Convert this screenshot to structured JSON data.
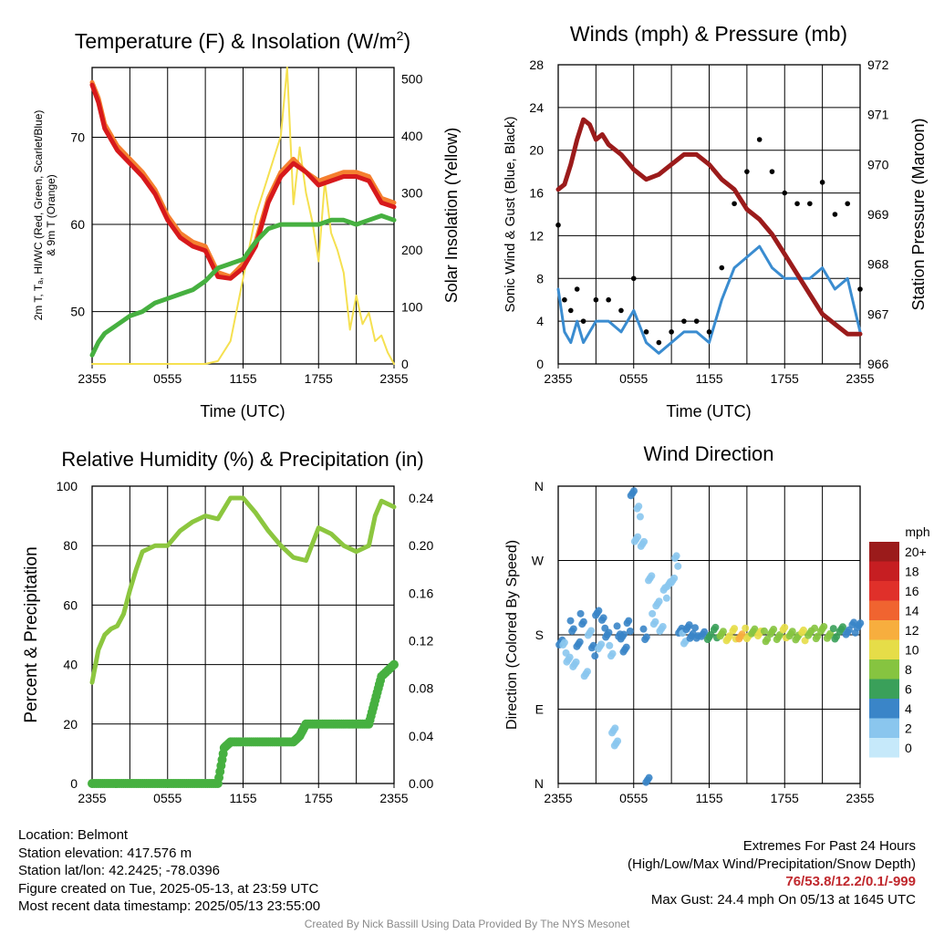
{
  "colors": {
    "t2m": "#d7191c",
    "t9m": "#f57f2f",
    "wc": "#c0282d",
    "td": "#46b040",
    "solar": "#f5e050",
    "wind": "#3a8cd0",
    "gust": "#000000",
    "pressure": "#9b1b1b",
    "rh": "#8cc63f",
    "precip": "#46b040"
  },
  "footer": {
    "location": "Location: Belmont",
    "elevation": "Station elevation: 417.576 m",
    "latlon": "Station lat/lon: 42.2425; -78.0396",
    "created": "Figure created on Tue, 2025-05-13, at 23:59 UTC",
    "recent": "Most recent data timestamp: 2025/05/13 23:55:00",
    "extremes_title": "Extremes For Past 24 Hours",
    "extremes_sub": "(High/Low/Max Wind/Precipitation/Snow Depth)",
    "extremes_values": "76/53.8/12.2/0.1/-999",
    "max_gust": "Max Gust: 24.4 mph On 05/13 at 1645 UTC",
    "credit": "Created By Nick Bassill Using Data Provided By The NYS Mesonet"
  },
  "chart_data": [
    {
      "type": "line",
      "title_main": "Temperature (F) & Insolation (W/m",
      "title_sup": "2",
      "title_end": ")",
      "xlabel": "Time (UTC)",
      "ylabel_lines": [
        "2m T, Tₐ, HI/WC (Red, Green, Scarlet/Blue)",
        "& 9m T (Orange)"
      ],
      "ylabel2": "Solar Insolation (Yellow)",
      "x_ticks": [
        "2355",
        "0555",
        "1155",
        "1755",
        "2355"
      ],
      "ylim": [
        44,
        78
      ],
      "y_ticks": [
        50,
        60,
        70
      ],
      "y2lim": [
        0,
        520
      ],
      "y2_ticks": [
        0,
        100,
        200,
        300,
        400,
        500
      ],
      "series": [
        {
          "key": "t9m",
          "axis": "left",
          "x": [
            0,
            0.5,
            1,
            2,
            3,
            4,
            5,
            6,
            7,
            8,
            9,
            10,
            11,
            12,
            13,
            14,
            15,
            16,
            17,
            18,
            19,
            20,
            21,
            22,
            23,
            24
          ],
          "values": [
            76.3,
            74.5,
            71.5,
            69,
            67.5,
            66,
            64,
            61,
            59,
            58,
            57.5,
            54.5,
            54,
            55.5,
            58,
            63,
            66,
            67.5,
            66,
            65,
            65.5,
            66,
            66,
            65.5,
            63,
            62.5
          ]
        },
        {
          "key": "t2m",
          "axis": "left",
          "x": [
            0,
            0.5,
            1,
            2,
            3,
            4,
            5,
            6,
            7,
            8,
            9,
            10,
            11,
            12,
            13,
            14,
            15,
            16,
            17,
            18,
            19,
            20,
            21,
            22,
            23,
            24
          ],
          "values": [
            76,
            74,
            71,
            68.5,
            67,
            65.5,
            63.5,
            60.5,
            58.5,
            57.5,
            57,
            54,
            53.8,
            55,
            57.5,
            62.5,
            65.5,
            67,
            66,
            64.5,
            65,
            65.5,
            65.5,
            65,
            62.5,
            62
          ]
        },
        {
          "key": "td",
          "axis": "left",
          "x": [
            0,
            0.5,
            1,
            2,
            3,
            4,
            5,
            6,
            7,
            8,
            9,
            10,
            11,
            12,
            13,
            14,
            15,
            16,
            17,
            18,
            19,
            20,
            21,
            22,
            23,
            24
          ],
          "values": [
            45,
            46.5,
            47.5,
            48.5,
            49.5,
            50,
            51,
            51.5,
            52,
            52.5,
            53.5,
            55,
            55.5,
            56,
            58,
            59.5,
            60,
            60,
            60,
            60,
            60.5,
            60.5,
            60,
            60.5,
            61,
            60.5
          ]
        },
        {
          "key": "solar",
          "axis": "right",
          "x": [
            0,
            9,
            10,
            11,
            12,
            13,
            14,
            15,
            15.5,
            16,
            16.5,
            17,
            17.5,
            18,
            18.5,
            19,
            19.5,
            20,
            20.5,
            21,
            21.5,
            22,
            22.5,
            23,
            23.5,
            24
          ],
          "values": [
            0,
            0,
            5,
            40,
            150,
            260,
            330,
            400,
            520,
            280,
            380,
            300,
            250,
            180,
            320,
            230,
            200,
            160,
            60,
            120,
            70,
            90,
            40,
            50,
            20,
            0
          ]
        }
      ]
    },
    {
      "type": "line",
      "title": "Winds (mph) & Pressure (mb)",
      "xlabel": "Time (UTC)",
      "ylabel": "Sonic Wind & Gust (Blue, Black)",
      "ylabel2": "Station Pressure (Maroon)",
      "x_ticks": [
        "2355",
        "0555",
        "1155",
        "1755",
        "2355"
      ],
      "ylim": [
        0,
        28
      ],
      "y_ticks": [
        0,
        4,
        8,
        12,
        16,
        20,
        24,
        28
      ],
      "y2lim": [
        966,
        972
      ],
      "y2_ticks": [
        966,
        967,
        968,
        969,
        970,
        971,
        972
      ],
      "series": [
        {
          "key": "pressure",
          "axis": "right",
          "x": [
            0,
            0.5,
            1,
            1.5,
            2,
            2.5,
            3,
            3.5,
            4,
            5,
            6,
            7,
            8,
            9,
            10,
            11,
            12,
            13,
            14,
            15,
            16,
            17,
            18,
            19,
            20,
            21,
            22,
            23,
            24
          ],
          "values": [
            969.5,
            969.6,
            970,
            970.5,
            970.9,
            970.8,
            970.5,
            970.6,
            970.4,
            970.2,
            969.9,
            969.7,
            969.8,
            970,
            970.2,
            970.2,
            970,
            969.7,
            969.5,
            969.1,
            968.9,
            968.6,
            968.2,
            967.8,
            967.4,
            967,
            966.8,
            966.6,
            966.6
          ]
        },
        {
          "key": "wind",
          "axis": "left",
          "x": [
            0,
            0.5,
            1,
            1.5,
            2,
            3,
            4,
            5,
            6,
            7,
            8,
            9,
            10,
            11,
            12,
            13,
            14,
            15,
            16,
            17,
            18,
            19,
            20,
            21,
            22,
            23,
            24
          ],
          "values": [
            7,
            3,
            2,
            4,
            2,
            4,
            4,
            3,
            5,
            2,
            1,
            2,
            3,
            3,
            2,
            6,
            9,
            10,
            11,
            9,
            8,
            8,
            8,
            9,
            7,
            8,
            3
          ]
        },
        {
          "key": "gust",
          "axis": "left",
          "mode": "markers",
          "x": [
            0,
            0.5,
            1,
            1.5,
            2,
            3,
            4,
            5,
            6,
            7,
            8,
            9,
            10,
            11,
            12,
            13,
            14,
            15,
            16,
            17,
            18,
            19,
            20,
            21,
            22,
            23,
            24
          ],
          "values": [
            13,
            6,
            5,
            7,
            4,
            6,
            6,
            5,
            8,
            3,
            2,
            3,
            4,
            4,
            3,
            9,
            15,
            18,
            21,
            18,
            16,
            15,
            15,
            17,
            14,
            15,
            7
          ]
        }
      ]
    },
    {
      "type": "line",
      "title": "Relative Humidity (%) & Precipitation (in)",
      "ylabel": "Percent & Precipitation",
      "x_ticks": [
        "2355",
        "0555",
        "1155",
        "1755",
        "2355"
      ],
      "ylim": [
        0,
        100
      ],
      "y_ticks": [
        0,
        20,
        40,
        60,
        80,
        100
      ],
      "y2lim": [
        0,
        0.25
      ],
      "y2_ticks": [
        "0.00",
        "0.04",
        "0.08",
        "0.12",
        "0.16",
        "0.20",
        "0.24"
      ],
      "series": [
        {
          "key": "rh",
          "axis": "left",
          "x": [
            0,
            0.5,
            1,
            1.5,
            2,
            2.5,
            3,
            3.5,
            4,
            5,
            6,
            7,
            8,
            9,
            10,
            11,
            12,
            13,
            14,
            15,
            16,
            17,
            18,
            19,
            20,
            21,
            22,
            22.5,
            23,
            24
          ],
          "values": [
            34,
            45,
            50,
            52,
            53,
            57,
            65,
            72,
            78,
            80,
            80,
            85,
            88,
            90,
            89,
            96,
            96,
            91,
            85,
            80,
            76,
            75,
            86,
            84,
            80,
            78,
            80,
            90,
            95,
            93
          ]
        },
        {
          "key": "precip",
          "axis": "right",
          "mode": "markers",
          "x": [
            0,
            1,
            2,
            3,
            4,
            5,
            6,
            7,
            8,
            9,
            10,
            10.5,
            11,
            12,
            13,
            14,
            15,
            16,
            16.5,
            17,
            18,
            19,
            20,
            21,
            22,
            22.5,
            23,
            24
          ],
          "values": [
            0,
            0,
            0,
            0,
            0,
            0,
            0,
            0,
            0,
            0,
            0,
            0.03,
            0.035,
            0.035,
            0.035,
            0.035,
            0.035,
            0.035,
            0.04,
            0.05,
            0.05,
            0.05,
            0.05,
            0.05,
            0.05,
            0.07,
            0.09,
            0.1
          ]
        }
      ]
    },
    {
      "type": "scatter",
      "title": "Wind Direction",
      "ylabel": "Direction (Colored By Speed)",
      "x_ticks": [
        "2355",
        "0555",
        "1155",
        "1755",
        "2355"
      ],
      "y_ticks": [
        "N",
        "E",
        "S",
        "W",
        "N"
      ],
      "ylim": [
        0,
        360
      ],
      "legend_title": "mph",
      "legend_labels": [
        "0",
        "2",
        "4",
        "6",
        "8",
        "10",
        "12",
        "14",
        "16",
        "18",
        "20+"
      ],
      "legend_colors": [
        "#c6e9fa",
        "#8ac6ee",
        "#3a85c8",
        "#3aa05a",
        "#86c440",
        "#e6dd48",
        "#f7ae3e",
        "#f06430",
        "#e0302a",
        "#c61e22",
        "#9b1b1b"
      ],
      "points": [
        {
          "x": 0.2,
          "dir": 175,
          "spd": 3
        },
        {
          "x": 0.5,
          "dir": 165,
          "spd": 2
        },
        {
          "x": 0.8,
          "dir": 150,
          "spd": 1
        },
        {
          "x": 1.1,
          "dir": 190,
          "spd": 4
        },
        {
          "x": 1.3,
          "dir": 140,
          "spd": 2
        },
        {
          "x": 1.6,
          "dir": 170,
          "spd": 3
        },
        {
          "x": 1.9,
          "dir": 200,
          "spd": 3
        },
        {
          "x": 2.2,
          "dir": 130,
          "spd": 1
        },
        {
          "x": 2.5,
          "dir": 185,
          "spd": 2
        },
        {
          "x": 2.8,
          "dir": 160,
          "spd": 3
        },
        {
          "x": 3.1,
          "dir": 205,
          "spd": 4
        },
        {
          "x": 3.3,
          "dir": 170,
          "spd": 2
        },
        {
          "x": 3.6,
          "dir": 195,
          "spd": 3
        },
        {
          "x": 3.9,
          "dir": 180,
          "spd": 4
        },
        {
          "x": 4.2,
          "dir": 160,
          "spd": 2
        },
        {
          "x": 4.4,
          "dir": 60,
          "spd": 1
        },
        {
          "x": 4.6,
          "dir": 50,
          "spd": 1
        },
        {
          "x": 4.8,
          "dir": 185,
          "spd": 4
        },
        {
          "x": 5.1,
          "dir": 175,
          "spd": 4
        },
        {
          "x": 5.3,
          "dir": 165,
          "spd": 3
        },
        {
          "x": 5.6,
          "dir": 190,
          "spd": 3
        },
        {
          "x": 5.9,
          "dir": 350,
          "spd": 3
        },
        {
          "x": 6.2,
          "dir": 300,
          "spd": 1
        },
        {
          "x": 6.4,
          "dir": 330,
          "spd": 1
        },
        {
          "x": 6.7,
          "dir": 290,
          "spd": 1
        },
        {
          "x": 6.9,
          "dir": 180,
          "spd": 3
        },
        {
          "x": 7.1,
          "dir": 0,
          "spd": 4
        },
        {
          "x": 7.3,
          "dir": 250,
          "spd": 1
        },
        {
          "x": 7.6,
          "dir": 200,
          "spd": 2
        },
        {
          "x": 7.9,
          "dir": 215,
          "spd": 2
        },
        {
          "x": 8.2,
          "dir": 190,
          "spd": 1
        },
        {
          "x": 8.5,
          "dir": 230,
          "spd": 1
        },
        {
          "x": 8.8,
          "dir": 240,
          "spd": 2
        },
        {
          "x": 9.1,
          "dir": 250,
          "spd": 1
        },
        {
          "x": 9.4,
          "dir": 270,
          "spd": 1
        },
        {
          "x": 9.7,
          "dir": 185,
          "spd": 3
        },
        {
          "x": 10.0,
          "dir": 175,
          "spd": 2
        },
        {
          "x": 10.3,
          "dir": 185,
          "spd": 4
        },
        {
          "x": 10.6,
          "dir": 180,
          "spd": 3
        },
        {
          "x": 11.0,
          "dir": 183,
          "spd": 4
        },
        {
          "x": 11.5,
          "dir": 178,
          "spd": 4
        },
        {
          "x": 12.0,
          "dir": 180,
          "spd": 5
        },
        {
          "x": 12.5,
          "dir": 182,
          "spd": 6
        },
        {
          "x": 13.0,
          "dir": 180,
          "spd": 7
        },
        {
          "x": 13.5,
          "dir": 180,
          "spd": 9
        },
        {
          "x": 14.0,
          "dir": 182,
          "spd": 10
        },
        {
          "x": 14.5,
          "dir": 178,
          "spd": 11
        },
        {
          "x": 15.0,
          "dir": 181,
          "spd": 9
        },
        {
          "x": 15.5,
          "dir": 180,
          "spd": 8
        },
        {
          "x": 16.0,
          "dir": 183,
          "spd": 10
        },
        {
          "x": 16.5,
          "dir": 179,
          "spd": 8
        },
        {
          "x": 17.0,
          "dir": 181,
          "spd": 7
        },
        {
          "x": 17.5,
          "dir": 180,
          "spd": 8
        },
        {
          "x": 18.0,
          "dir": 182,
          "spd": 9
        },
        {
          "x": 18.5,
          "dir": 180,
          "spd": 7
        },
        {
          "x": 19.0,
          "dir": 181,
          "spd": 8
        },
        {
          "x": 19.5,
          "dir": 180,
          "spd": 9
        },
        {
          "x": 20.0,
          "dir": 182,
          "spd": 7
        },
        {
          "x": 20.5,
          "dir": 181,
          "spd": 8
        },
        {
          "x": 21.0,
          "dir": 183,
          "spd": 8
        },
        {
          "x": 21.5,
          "dir": 180,
          "spd": 7
        },
        {
          "x": 22.0,
          "dir": 182,
          "spd": 6
        },
        {
          "x": 22.5,
          "dir": 184,
          "spd": 5
        },
        {
          "x": 23.0,
          "dir": 186,
          "spd": 4
        },
        {
          "x": 23.5,
          "dir": 188,
          "spd": 4
        },
        {
          "x": 23.9,
          "dir": 190,
          "spd": 4
        }
      ]
    }
  ]
}
